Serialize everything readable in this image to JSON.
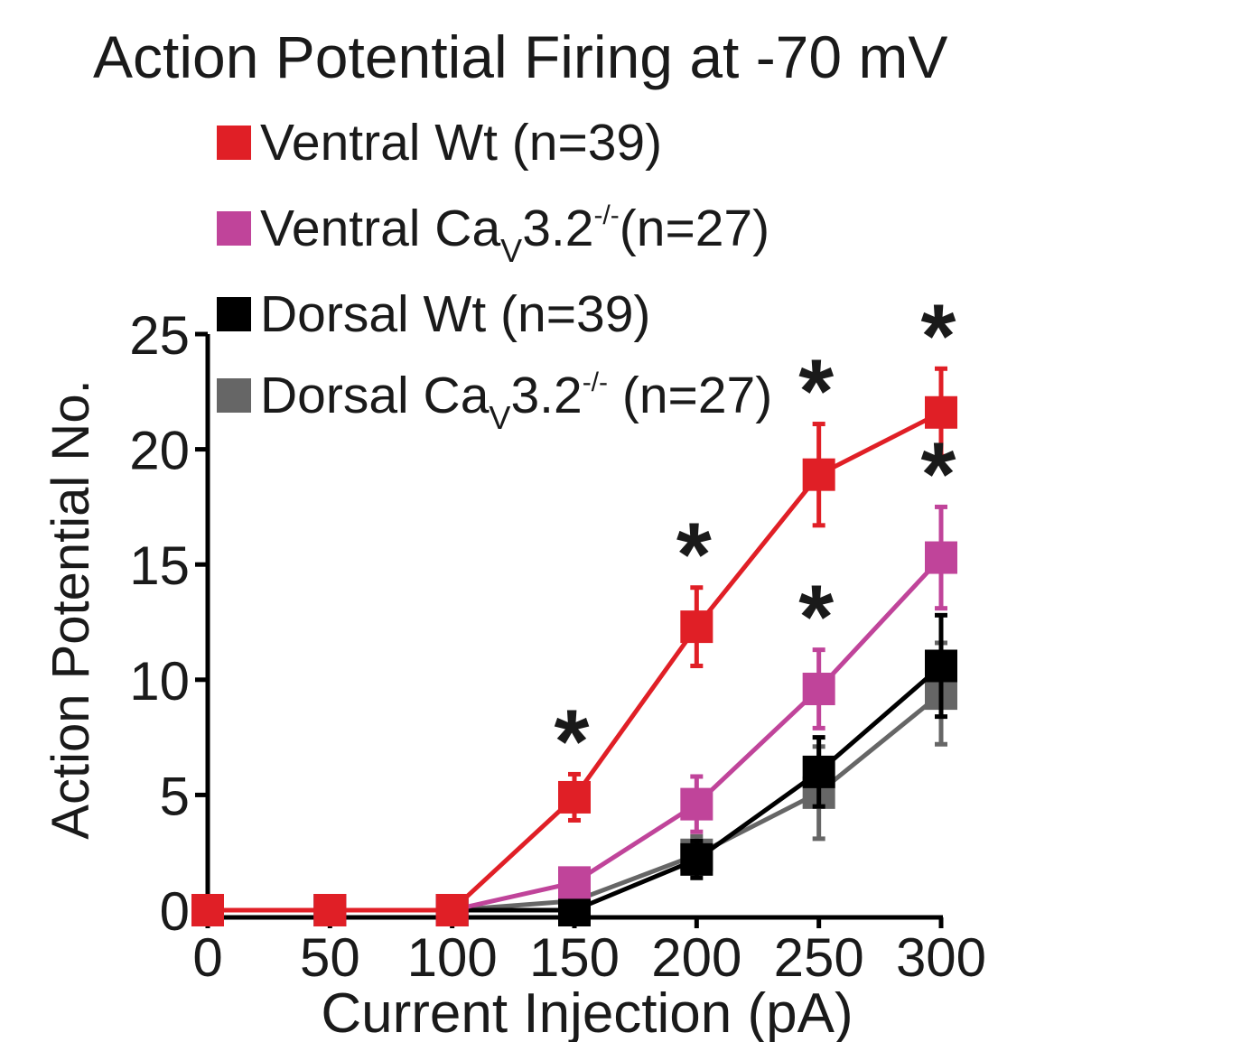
{
  "chart_data": {
    "type": "line",
    "title": "Action Potential Firing at -70 mV",
    "xlabel": "Current Injection (pA)",
    "ylabel": "Action Potential No.",
    "x": [
      0,
      50,
      100,
      150,
      200,
      250,
      300
    ],
    "xlim": [
      0,
      300
    ],
    "ylim": [
      0,
      25
    ],
    "xticks": [
      "0",
      "50",
      "100",
      "150",
      "200",
      "250",
      "300"
    ],
    "yticks": [
      "0",
      "5",
      "10",
      "15",
      "20",
      "25"
    ],
    "grid": false,
    "legend_position": "top-left",
    "significance_symbol": "*",
    "series": [
      {
        "name": "Dorsal Caᵥ3.2-/- (n=27)",
        "legend": {
          "pre": "Dorsal Ca",
          "sub": "V",
          "mid": "3.2",
          "sup": "-/-",
          "post": " (n=27)"
        },
        "color": "#666666",
        "values": [
          0,
          0,
          0,
          0.4,
          2.4,
          5.1,
          9.4
        ],
        "errors": [
          0,
          0,
          0,
          0.2,
          0.8,
          2.0,
          2.2
        ]
      },
      {
        "name": "Dorsal Wt (n=39)",
        "legend": {
          "pre": "Dorsal Wt (n=39)",
          "sub": "",
          "mid": "",
          "sup": "",
          "post": ""
        },
        "color": "#000000",
        "values": [
          0,
          0,
          0,
          0,
          2.2,
          6.0,
          10.6
        ],
        "errors": [
          0,
          0,
          0,
          0,
          0.8,
          1.5,
          2.2
        ]
      },
      {
        "name": "Ventral Caᵥ3.2-/-(n=27)",
        "legend": {
          "pre": "Ventral Ca",
          "sub": "V",
          "mid": "3.2",
          "sup": "-/-",
          "post": "(n=27)"
        },
        "color": "#c0449a",
        "values": [
          0,
          0,
          0,
          1.2,
          4.6,
          9.6,
          15.3
        ],
        "errors": [
          0,
          0,
          0,
          0.3,
          1.2,
          1.7,
          2.2
        ],
        "significant_at": [
          250,
          300
        ]
      },
      {
        "name": "Ventral Wt (n=39)",
        "legend": {
          "pre": "Ventral Wt (n=39)",
          "sub": "",
          "mid": "",
          "sup": "",
          "post": ""
        },
        "color": "#e01f26",
        "values": [
          0,
          0,
          0,
          4.9,
          12.3,
          18.9,
          21.6
        ],
        "errors": [
          0,
          0,
          0,
          1.0,
          1.7,
          2.2,
          1.9
        ],
        "significant_at": [
          150,
          200,
          250,
          300
        ]
      }
    ]
  }
}
